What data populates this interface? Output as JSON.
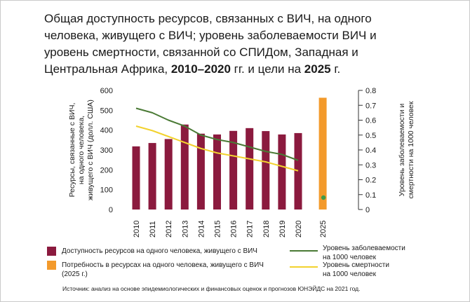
{
  "title": {
    "line1": "Общая доступность ресурсов, связанных с ВИЧ, на одного",
    "line2": "человека, живущего с ВИЧ; уровень заболеваемости ВИЧ и",
    "line3": "уровень смертности, связанной со СПИДом, Западная и",
    "line4_a": "Центральная Африка, ",
    "line4_b": "2010–2020",
    "line4_c": " гг. и цели на ",
    "line4_d": "2025",
    "line4_e": " г."
  },
  "colors": {
    "resources_bar": "#8b1a3e",
    "need_bar": "#f39a2b",
    "incidence_line": "#4a7a35",
    "mortality_line": "#f2d22e",
    "target_dot": "#3f9a4a"
  },
  "chart_data": {
    "type": "bar",
    "categories": [
      "2010",
      "2011",
      "2012",
      "2013",
      "2014",
      "2015",
      "2016",
      "2017",
      "2018",
      "2019",
      "2020",
      "2025"
    ],
    "left_axis": {
      "label_lines": [
        "Ресурсы, связанные с ВИЧ,",
        "на одного человека,",
        "живущего с ВИЧ (долл. США)"
      ],
      "ylim": [
        0,
        600
      ],
      "ticks": [
        "0",
        "100",
        "200",
        "300",
        "400",
        "500",
        "600"
      ]
    },
    "right_axis": {
      "label_lines": [
        "Уровень заболеваемости и",
        "смертности на 1000 человек"
      ],
      "ylim": [
        0,
        0.8
      ],
      "ticks": [
        "0",
        "0.1",
        "0.2",
        "0.3",
        "0.4",
        "0.5",
        "0.6",
        "0.7",
        "0.8"
      ]
    },
    "series": [
      {
        "name": "Доступность ресурсов на одного человека, живущего с ВИЧ",
        "kind": "bar",
        "axis": "left",
        "values": [
          318,
          335,
          355,
          428,
          382,
          378,
          396,
          410,
          395,
          378,
          385,
          null
        ]
      },
      {
        "name": "Потребность в ресурсах на одного человека, живущего с ВИЧ (2025 г.)",
        "kind": "bar",
        "axis": "left",
        "values": [
          null,
          null,
          null,
          null,
          null,
          null,
          null,
          null,
          null,
          null,
          null,
          563
        ]
      },
      {
        "name": "Уровень заболеваемости на 1000 человек",
        "kind": "line",
        "axis": "right",
        "values": [
          0.68,
          0.65,
          0.6,
          0.56,
          0.5,
          0.47,
          0.45,
          0.42,
          0.39,
          0.37,
          0.33,
          null
        ],
        "target_2025": 0.08
      },
      {
        "name": "Уровень смертности на 1000 человек",
        "kind": "line",
        "axis": "right",
        "values": [
          0.56,
          0.53,
          0.49,
          0.45,
          0.41,
          0.38,
          0.36,
          0.34,
          0.32,
          0.29,
          0.26,
          null
        ]
      }
    ],
    "grid": false
  },
  "legend": {
    "resources": "Доступность ресурсов на одного человека, живущего с ВИЧ",
    "need_line1": "Потребность в ресурсах на одного человека, живущего с ВИЧ",
    "need_line2": "(2025 г.)",
    "incidence_line1": "Уровень заболеваемости",
    "incidence_line2": "на 1000 человек",
    "mortality_line1": "Уровень смертности",
    "mortality_line2": "на 1000 человек"
  },
  "source": "Источник: анализ на основе эпидемиологических и финансовых оценок и прогнозов ЮНЭЙДС на 2021 год."
}
